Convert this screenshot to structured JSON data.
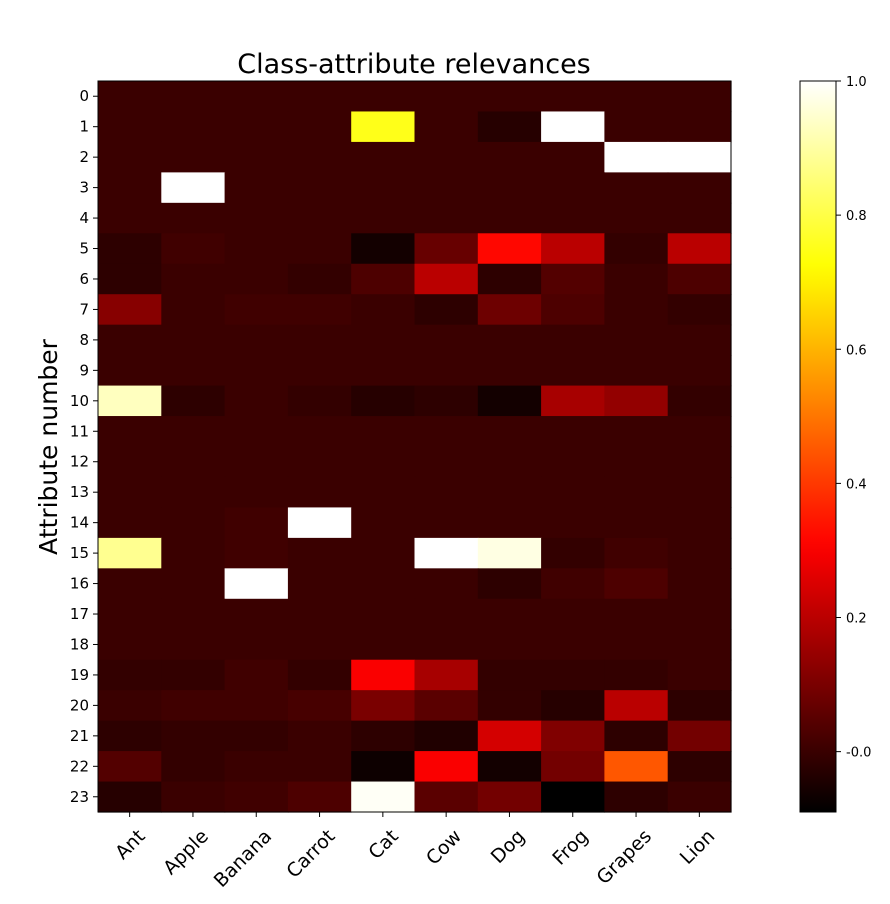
{
  "chart_data": {
    "type": "heatmap",
    "title": "Class-attribute relevances",
    "xlabel": "",
    "ylabel": "Attribute number",
    "x_categories": [
      "Ant",
      "Apple",
      "Banana",
      "Carrot",
      "Cat",
      "Cow",
      "Dog",
      "Frog",
      "Grapes",
      "Lion"
    ],
    "y_categories": [
      "0",
      "1",
      "2",
      "3",
      "4",
      "5",
      "6",
      "7",
      "8",
      "9",
      "10",
      "11",
      "12",
      "13",
      "14",
      "15",
      "16",
      "17",
      "18",
      "19",
      "20",
      "21",
      "22",
      "23"
    ],
    "values": [
      [
        0.0,
        0.0,
        0.0,
        0.0,
        0.0,
        0.0,
        0.0,
        0.0,
        0.0,
        0.0
      ],
      [
        0.0,
        0.0,
        0.0,
        0.0,
        0.75,
        0.0,
        -0.03,
        1.0,
        0.0,
        0.0
      ],
      [
        0.0,
        0.0,
        0.0,
        0.0,
        0.0,
        0.0,
        0.0,
        0.0,
        1.0,
        1.0
      ],
      [
        0.0,
        1.0,
        0.0,
        0.0,
        0.0,
        0.0,
        0.0,
        0.0,
        0.0,
        0.0
      ],
      [
        0.0,
        0.0,
        0.0,
        0.0,
        0.0,
        0.0,
        0.0,
        0.0,
        0.0,
        0.0
      ],
      [
        -0.02,
        0.01,
        0.0,
        0.0,
        -0.06,
        0.07,
        0.32,
        0.2,
        -0.01,
        0.2
      ],
      [
        -0.02,
        0.0,
        0.0,
        -0.01,
        0.03,
        0.2,
        -0.02,
        0.04,
        0.0,
        0.03
      ],
      [
        0.12,
        0.0,
        0.01,
        0.01,
        0.0,
        -0.02,
        0.08,
        0.03,
        0.0,
        -0.01
      ],
      [
        0.0,
        0.0,
        0.0,
        0.0,
        0.0,
        0.0,
        0.0,
        0.0,
        0.0,
        0.0
      ],
      [
        0.0,
        0.0,
        0.0,
        0.0,
        0.0,
        0.0,
        0.0,
        0.0,
        0.0,
        0.0
      ],
      [
        0.93,
        -0.02,
        0.0,
        -0.01,
        -0.03,
        -0.02,
        -0.06,
        0.17,
        0.14,
        -0.01
      ],
      [
        0.0,
        0.0,
        0.0,
        0.0,
        0.0,
        0.0,
        0.0,
        0.0,
        0.0,
        0.0
      ],
      [
        0.0,
        0.0,
        0.0,
        0.0,
        0.0,
        0.0,
        0.0,
        0.0,
        0.0,
        0.0
      ],
      [
        0.0,
        0.0,
        0.0,
        0.0,
        0.0,
        0.0,
        0.0,
        0.0,
        0.0,
        0.0
      ],
      [
        0.0,
        0.0,
        0.01,
        1.0,
        0.0,
        0.0,
        0.0,
        0.0,
        0.0,
        0.0
      ],
      [
        0.88,
        0.0,
        0.01,
        0.0,
        0.0,
        1.0,
        0.97,
        -0.01,
        0.01,
        0.0
      ],
      [
        0.0,
        0.0,
        1.0,
        0.0,
        0.0,
        0.0,
        -0.02,
        0.01,
        0.03,
        0.0
      ],
      [
        0.0,
        0.0,
        0.0,
        0.0,
        0.0,
        0.0,
        0.0,
        0.0,
        0.0,
        0.0
      ],
      [
        0.0,
        0.0,
        0.0,
        0.0,
        0.0,
        0.0,
        0.0,
        0.0,
        0.0,
        0.0
      ],
      [
        -0.01,
        -0.01,
        0.01,
        -0.01,
        0.3,
        0.17,
        -0.01,
        -0.01,
        -0.01,
        0.0
      ],
      [
        0.0,
        0.01,
        0.01,
        0.02,
        0.1,
        0.05,
        -0.01,
        -0.03,
        0.2,
        -0.02
      ],
      [
        -0.02,
        -0.01,
        -0.01,
        0.0,
        -0.02,
        -0.04,
        0.24,
        0.11,
        -0.02,
        0.09
      ],
      [
        0.04,
        -0.01,
        0.0,
        0.0,
        -0.07,
        0.3,
        -0.06,
        0.09,
        0.45,
        -0.02
      ],
      [
        -0.03,
        0.0,
        0.01,
        0.03,
        0.99,
        0.05,
        0.09,
        -0.09,
        -0.02,
        0.0
      ]
    ],
    "colormap": "hot",
    "vmin": -0.09,
    "vmax": 1.0,
    "colorbar_ticks": [
      "-0.0",
      "0.2",
      "0.4",
      "0.6",
      "0.8",
      "1.0"
    ],
    "colorbar_tick_values": [
      0.0,
      0.2,
      0.4,
      0.6,
      0.8,
      1.0
    ],
    "grid": false,
    "legend": "none"
  }
}
